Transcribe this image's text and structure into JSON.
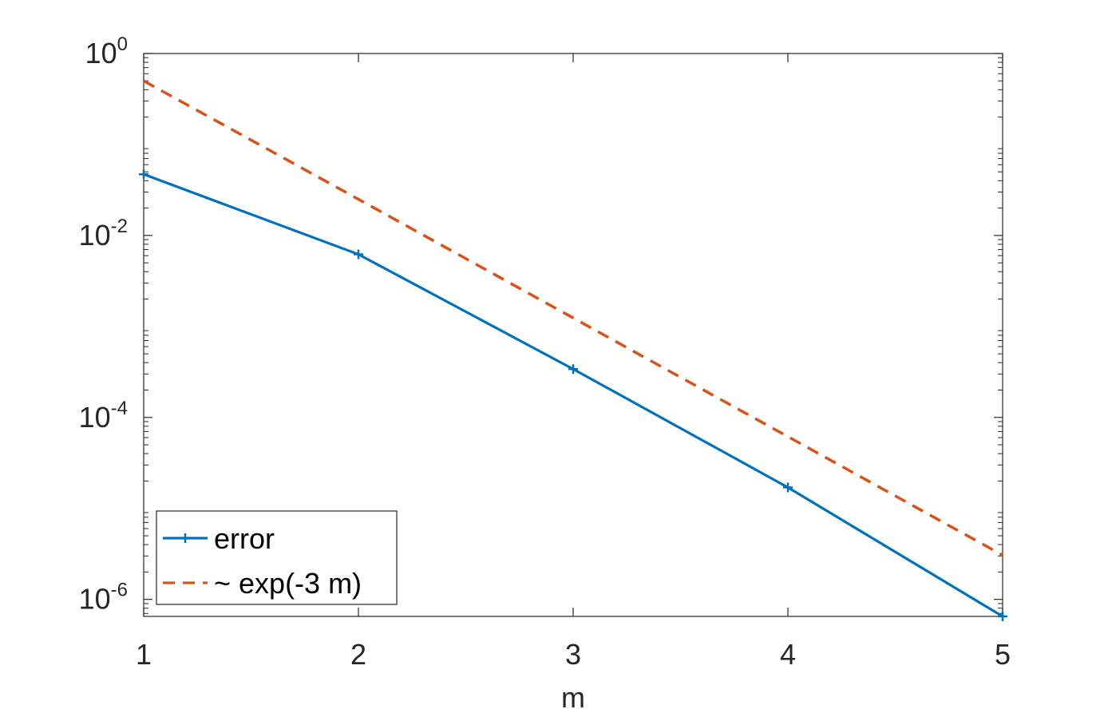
{
  "chart_data": {
    "type": "line",
    "xlabel": "m",
    "ylabel": "",
    "title": "",
    "x_ticks": [
      "1",
      "2",
      "3",
      "4",
      "5"
    ],
    "y_scale": "log",
    "y_ticks": [
      {
        "base": "10",
        "exp": "-6",
        "value": 1e-06
      },
      {
        "base": "10",
        "exp": "-4",
        "value": 0.0001
      },
      {
        "base": "10",
        "exp": "-2",
        "value": 0.01
      },
      {
        "base": "10",
        "exp": "0",
        "value": 1
      }
    ],
    "xlim": [
      1,
      5
    ],
    "ylim": [
      6.5e-07,
      1
    ],
    "grid": false,
    "legend_position": "bottom-left",
    "series": [
      {
        "name": "error",
        "color": "#0072BD",
        "style": "solid",
        "marker": "plus",
        "x": [
          1,
          2,
          3,
          4,
          5
        ],
        "y": [
          0.047,
          0.0062,
          0.00034,
          1.7e-05,
          6.5e-07
        ]
      },
      {
        "name": "~ exp(-3 m)",
        "color": "#D95319",
        "style": "dashed",
        "marker": "none",
        "x": [
          1,
          2,
          3,
          4,
          5
        ],
        "y": [
          0.5,
          0.025,
          0.00124,
          6.15e-05,
          3.06e-06
        ]
      }
    ]
  }
}
